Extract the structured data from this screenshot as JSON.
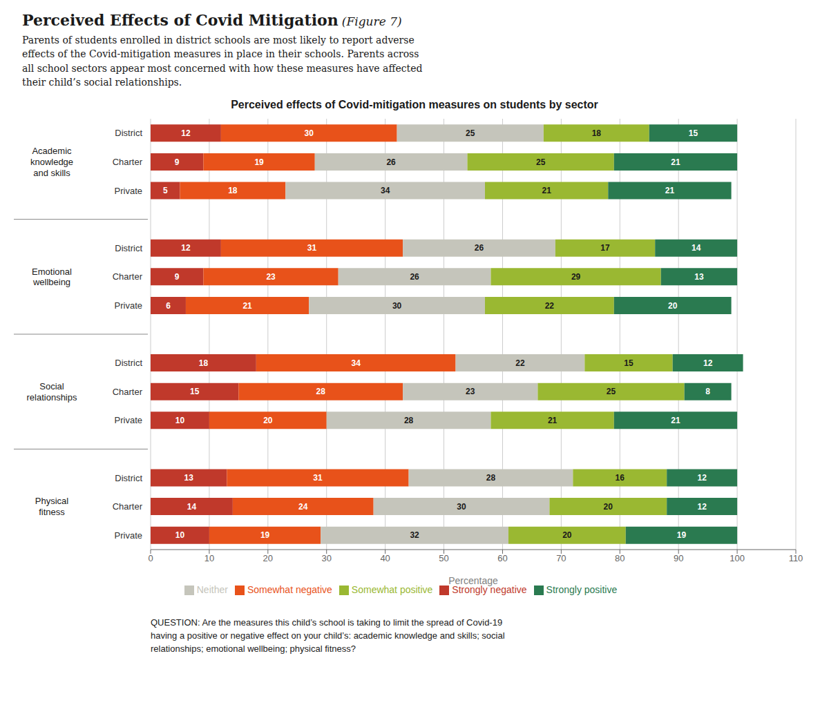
{
  "chart_data": {
    "type": "bar",
    "orientation": "horizontal",
    "stacked": true,
    "data_labels": true,
    "grid": true,
    "legend": "bottom",
    "title": "Perceived effects of Covid-mitigation measures on students by sector",
    "subtitle": "Parents of students enrolled in district schools are most likely to report adverse\neffects of the Covid-mitigation measures in place in their schools. Parents across\nall school sectors appear most concerned with how these measures have affected\ntheir child’s social relationships.",
    "annotations": [
      "Perceived Effects of Covid Mitigation",
      "(Figure 7)",
      "QUESTION: Are the measures this child’s school is taking to limit the spread of Covid-19\nhaving a positive or negative effect on your child’s: academic knowledge and skills; social\nrelationships; emotional wellbeing; physical fitness?"
    ],
    "xlabel": "Percentage",
    "categories": [
      "District",
      "Charter",
      "Private",
      "District",
      "Charter",
      "Private",
      "District",
      "Charter",
      "Private",
      "District",
      "Charter",
      "Private"
    ],
    "category_groups": [
      "Academic\nknowledge\nand skills",
      "Emotional\nwellbeing",
      "Social\nrelationships",
      "Physical\nfitness"
    ],
    "series": [
      {
        "name": "Strongly negative",
        "color": "#c0392b",
        "values": [
          12,
          9,
          5,
          12,
          9,
          6,
          18,
          15,
          10,
          13,
          14,
          10
        ]
      },
      {
        "name": "Somewhat negative",
        "color": "#e8521a",
        "values": [
          30,
          19,
          18,
          31,
          23,
          21,
          34,
          28,
          20,
          31,
          24,
          19
        ]
      },
      {
        "name": "Neither",
        "color": "#c5c5bb",
        "values": [
          25,
          26,
          34,
          26,
          26,
          30,
          22,
          23,
          28,
          28,
          30,
          32
        ]
      },
      {
        "name": "Somewhat positive",
        "color": "#9ab832",
        "values": [
          18,
          25,
          21,
          17,
          29,
          22,
          15,
          25,
          21,
          16,
          20,
          20
        ]
      },
      {
        "name": "Strongly positive",
        "color": "#2a7a50",
        "values": [
          15,
          21,
          21,
          14,
          13,
          20,
          12,
          8,
          21,
          12,
          12,
          19
        ]
      }
    ],
    "xlim": [
      0,
      110
    ],
    "xticks": [
      0,
      10,
      20,
      30,
      40,
      50,
      60,
      70,
      80,
      90,
      100,
      110
    ]
  }
}
